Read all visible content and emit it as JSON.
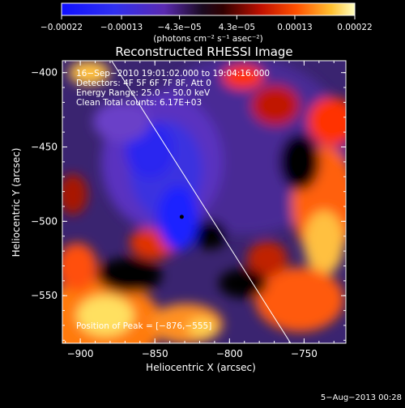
{
  "chart_data": {
    "type": "heatmap",
    "title": "Reconstructed RHESSI Image",
    "xlabel": "Heliocentric X (arcsec)",
    "ylabel": "Heliocentric Y (arcsec)",
    "xlim": [
      -912,
      -722
    ],
    "ylim": [
      -582,
      -392
    ],
    "xticks": [
      -900,
      -850,
      -800,
      -750
    ],
    "yticks": [
      -400,
      -450,
      -500,
      -550
    ],
    "xtick_labels": [
      "−900",
      "−850",
      "−800",
      "−750"
    ],
    "ytick_labels": [
      "−400",
      "−450",
      "−500",
      "−550"
    ],
    "colorbar": {
      "min": -0.00022,
      "max": 0.00022,
      "tick_values": [
        -0.00022,
        -0.00013,
        -4.3e-05,
        4.3e-05,
        0.00013,
        0.00022
      ],
      "tick_labels": [
        "−0.00022",
        "−0.00013",
        "−4.3e−05",
        "4.3e−05",
        "0.00013",
        "0.00022"
      ],
      "unit_label": "(photons cm⁻² s⁻¹ asec⁻²)"
    },
    "info_lines": [
      "16−Sep−2010 19:01:02.000 to 19:04:16.000",
      "Detectors: 4F 5F 6F 7F 8F, Att 0",
      "Energy Range: 25.0 − 50.0 keV",
      "Clean    Total counts: 6.17E+03"
    ],
    "peak_label": "Position of Peak = [−876,−555]",
    "marker": {
      "x": -832,
      "y": -497
    },
    "limb_line": [
      {
        "x": -879,
        "y": -392
      },
      {
        "x": -759,
        "y": -582
      }
    ],
    "footer_date": "5−Aug−2013 00:28",
    "colors": {
      "low": "#1a00ff",
      "mid": "#2a1a5a",
      "high": "#ffff66",
      "frame": "#ffffff"
    }
  }
}
